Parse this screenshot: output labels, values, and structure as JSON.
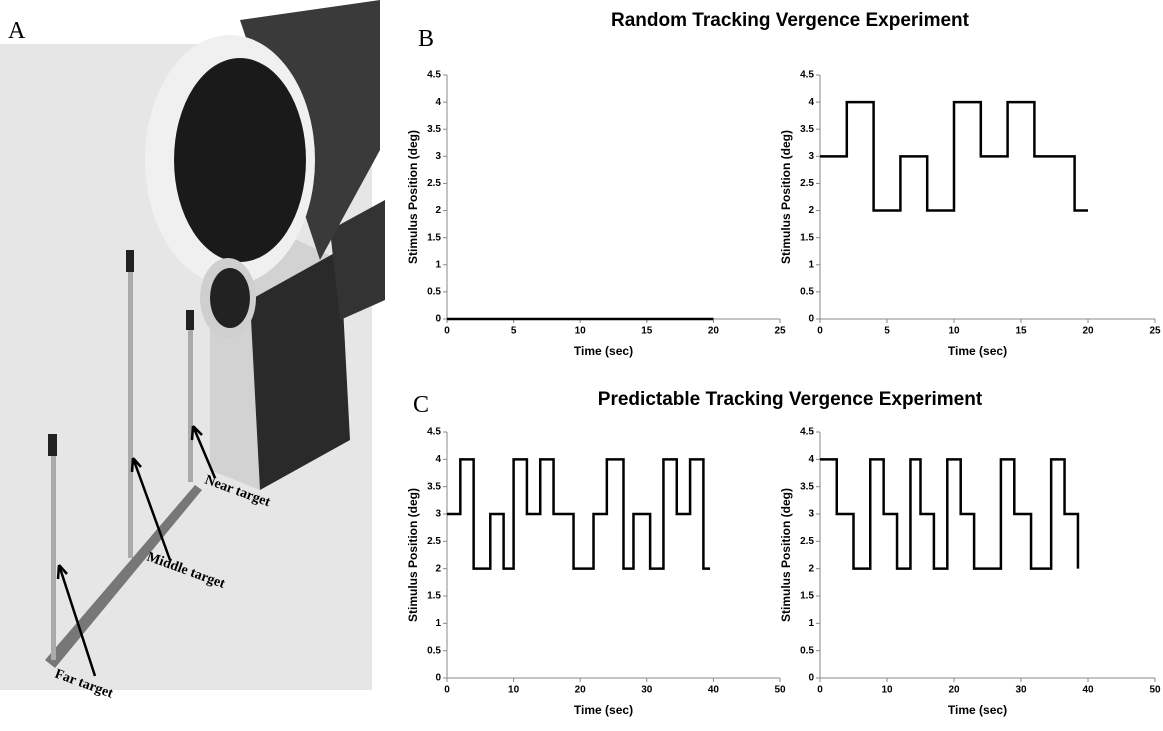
{
  "panel_a": {
    "label": "A",
    "targets": [
      "Near target",
      "Middle target",
      "Far target"
    ]
  },
  "sections": [
    {
      "label": "B",
      "title": "Random Tracking Vergence Experiment"
    },
    {
      "label": "C",
      "title": "Predictable Tracking Vergence Experiment"
    }
  ],
  "chart_data": [
    {
      "type": "line",
      "xlabel": "Time (sec)",
      "ylabel": "Stimulus Position (deg)",
      "color": "#000000",
      "x": [
        0,
        20
      ],
      "values": [
        0,
        0
      ],
      "xlim": [
        0,
        25
      ],
      "xticks": [
        0,
        5,
        10,
        15,
        20,
        25
      ],
      "ylim": [
        0,
        4.5
      ],
      "yticks": [
        0,
        0.5,
        1,
        1.5,
        2,
        2.5,
        3,
        3.5,
        4,
        4.5
      ]
    },
    {
      "type": "line",
      "xlabel": "Time (sec)",
      "ylabel": "Stimulus Position (deg)",
      "color": "#000000",
      "x": [
        0,
        2,
        2,
        4,
        4,
        6,
        6,
        8,
        8,
        10,
        10,
        12,
        12,
        14,
        14,
        16,
        16,
        19,
        19,
        20
      ],
      "values": [
        3,
        3,
        4,
        4,
        2,
        2,
        3,
        3,
        2,
        2,
        4,
        4,
        3,
        3,
        4,
        4,
        3,
        3,
        2,
        2
      ],
      "xlim": [
        0,
        25
      ],
      "xticks": [
        0,
        5,
        10,
        15,
        20,
        25
      ],
      "ylim": [
        0,
        4.5
      ],
      "yticks": [
        0,
        0.5,
        1,
        1.5,
        2,
        2.5,
        3,
        3.5,
        4,
        4.5
      ]
    },
    {
      "type": "line",
      "xlabel": "Time (sec)",
      "ylabel": "Stimulus Position (deg)",
      "color": "#000000",
      "x": [
        0,
        2,
        2,
        4,
        4,
        6.5,
        6.5,
        8.5,
        8.5,
        10,
        10,
        12,
        12,
        14,
        14,
        16,
        16,
        19,
        19,
        22,
        22,
        24,
        24,
        26.5,
        26.5,
        28,
        28,
        30.5,
        30.5,
        32.5,
        32.5,
        34.5,
        34.5,
        36.5,
        36.5,
        38.5,
        38.5,
        39.5
      ],
      "values": [
        3,
        3,
        4,
        4,
        2,
        2,
        3,
        3,
        2,
        2,
        4,
        4,
        3,
        3,
        4,
        4,
        3,
        3,
        2,
        2,
        3,
        3,
        4,
        4,
        2,
        2,
        3,
        3,
        2,
        2,
        4,
        4,
        3,
        3,
        4,
        4,
        2,
        2
      ],
      "xlim": [
        0,
        50
      ],
      "xticks": [
        0,
        10,
        20,
        30,
        40,
        50
      ],
      "ylim": [
        0,
        4.5
      ],
      "yticks": [
        0,
        0.5,
        1,
        1.5,
        2,
        2.5,
        3,
        3.5,
        4,
        4.5
      ]
    },
    {
      "type": "line",
      "xlabel": "Time (sec)",
      "ylabel": "Stimulus Position (deg)",
      "color": "#000000",
      "x": [
        0,
        2.5,
        2.5,
        5,
        5,
        7.5,
        7.5,
        9.5,
        9.5,
        11.5,
        11.5,
        13.5,
        13.5,
        15,
        15,
        17,
        17,
        19,
        19,
        21,
        21,
        23,
        23,
        27,
        27,
        29,
        29,
        31.5,
        31.5,
        34.5,
        34.5,
        36.5,
        36.5,
        38.5,
        38.5
      ],
      "values": [
        4,
        4,
        3,
        3,
        2,
        2,
        4,
        4,
        3,
        3,
        2,
        2,
        4,
        4,
        3,
        3,
        2,
        2,
        4,
        4,
        3,
        3,
        2,
        2,
        4,
        4,
        3,
        3,
        2,
        2,
        4,
        4,
        3,
        3,
        2
      ],
      "xlim": [
        0,
        50
      ],
      "xticks": [
        0,
        10,
        20,
        30,
        40,
        50
      ],
      "ylim": [
        0,
        4.5
      ],
      "yticks": [
        0,
        0.5,
        1,
        1.5,
        2,
        2.5,
        3,
        3.5,
        4,
        4.5
      ]
    }
  ]
}
